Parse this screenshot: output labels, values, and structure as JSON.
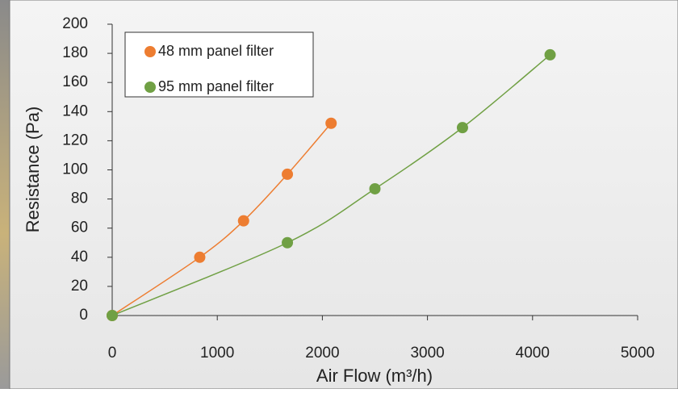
{
  "chart_data": {
    "type": "scatter",
    "x_label": "Air Flow (m³/h)",
    "y_label": "Resistance (Pa)",
    "series": [
      {
        "name": "48 mm panel filter",
        "color": "#ed7d31",
        "x": [
          0,
          833,
          1250,
          1667,
          2083
        ],
        "values": [
          0,
          40,
          65,
          97,
          132
        ]
      },
      {
        "name": "95 mm panel filter",
        "color": "#70a044",
        "x": [
          0,
          1667,
          2500,
          3333,
          4167
        ],
        "values": [
          0,
          50,
          87,
          129,
          179
        ]
      }
    ],
    "xlim": [
      0,
      5000
    ],
    "xticks": [
      0,
      1000,
      2000,
      3000,
      4000,
      5000
    ],
    "ylim": [
      0,
      200
    ],
    "yticks": [
      0,
      20,
      40,
      60,
      80,
      100,
      120,
      140,
      160,
      180,
      200
    ],
    "grid": false,
    "legend": "top-left",
    "smooth": true
  }
}
